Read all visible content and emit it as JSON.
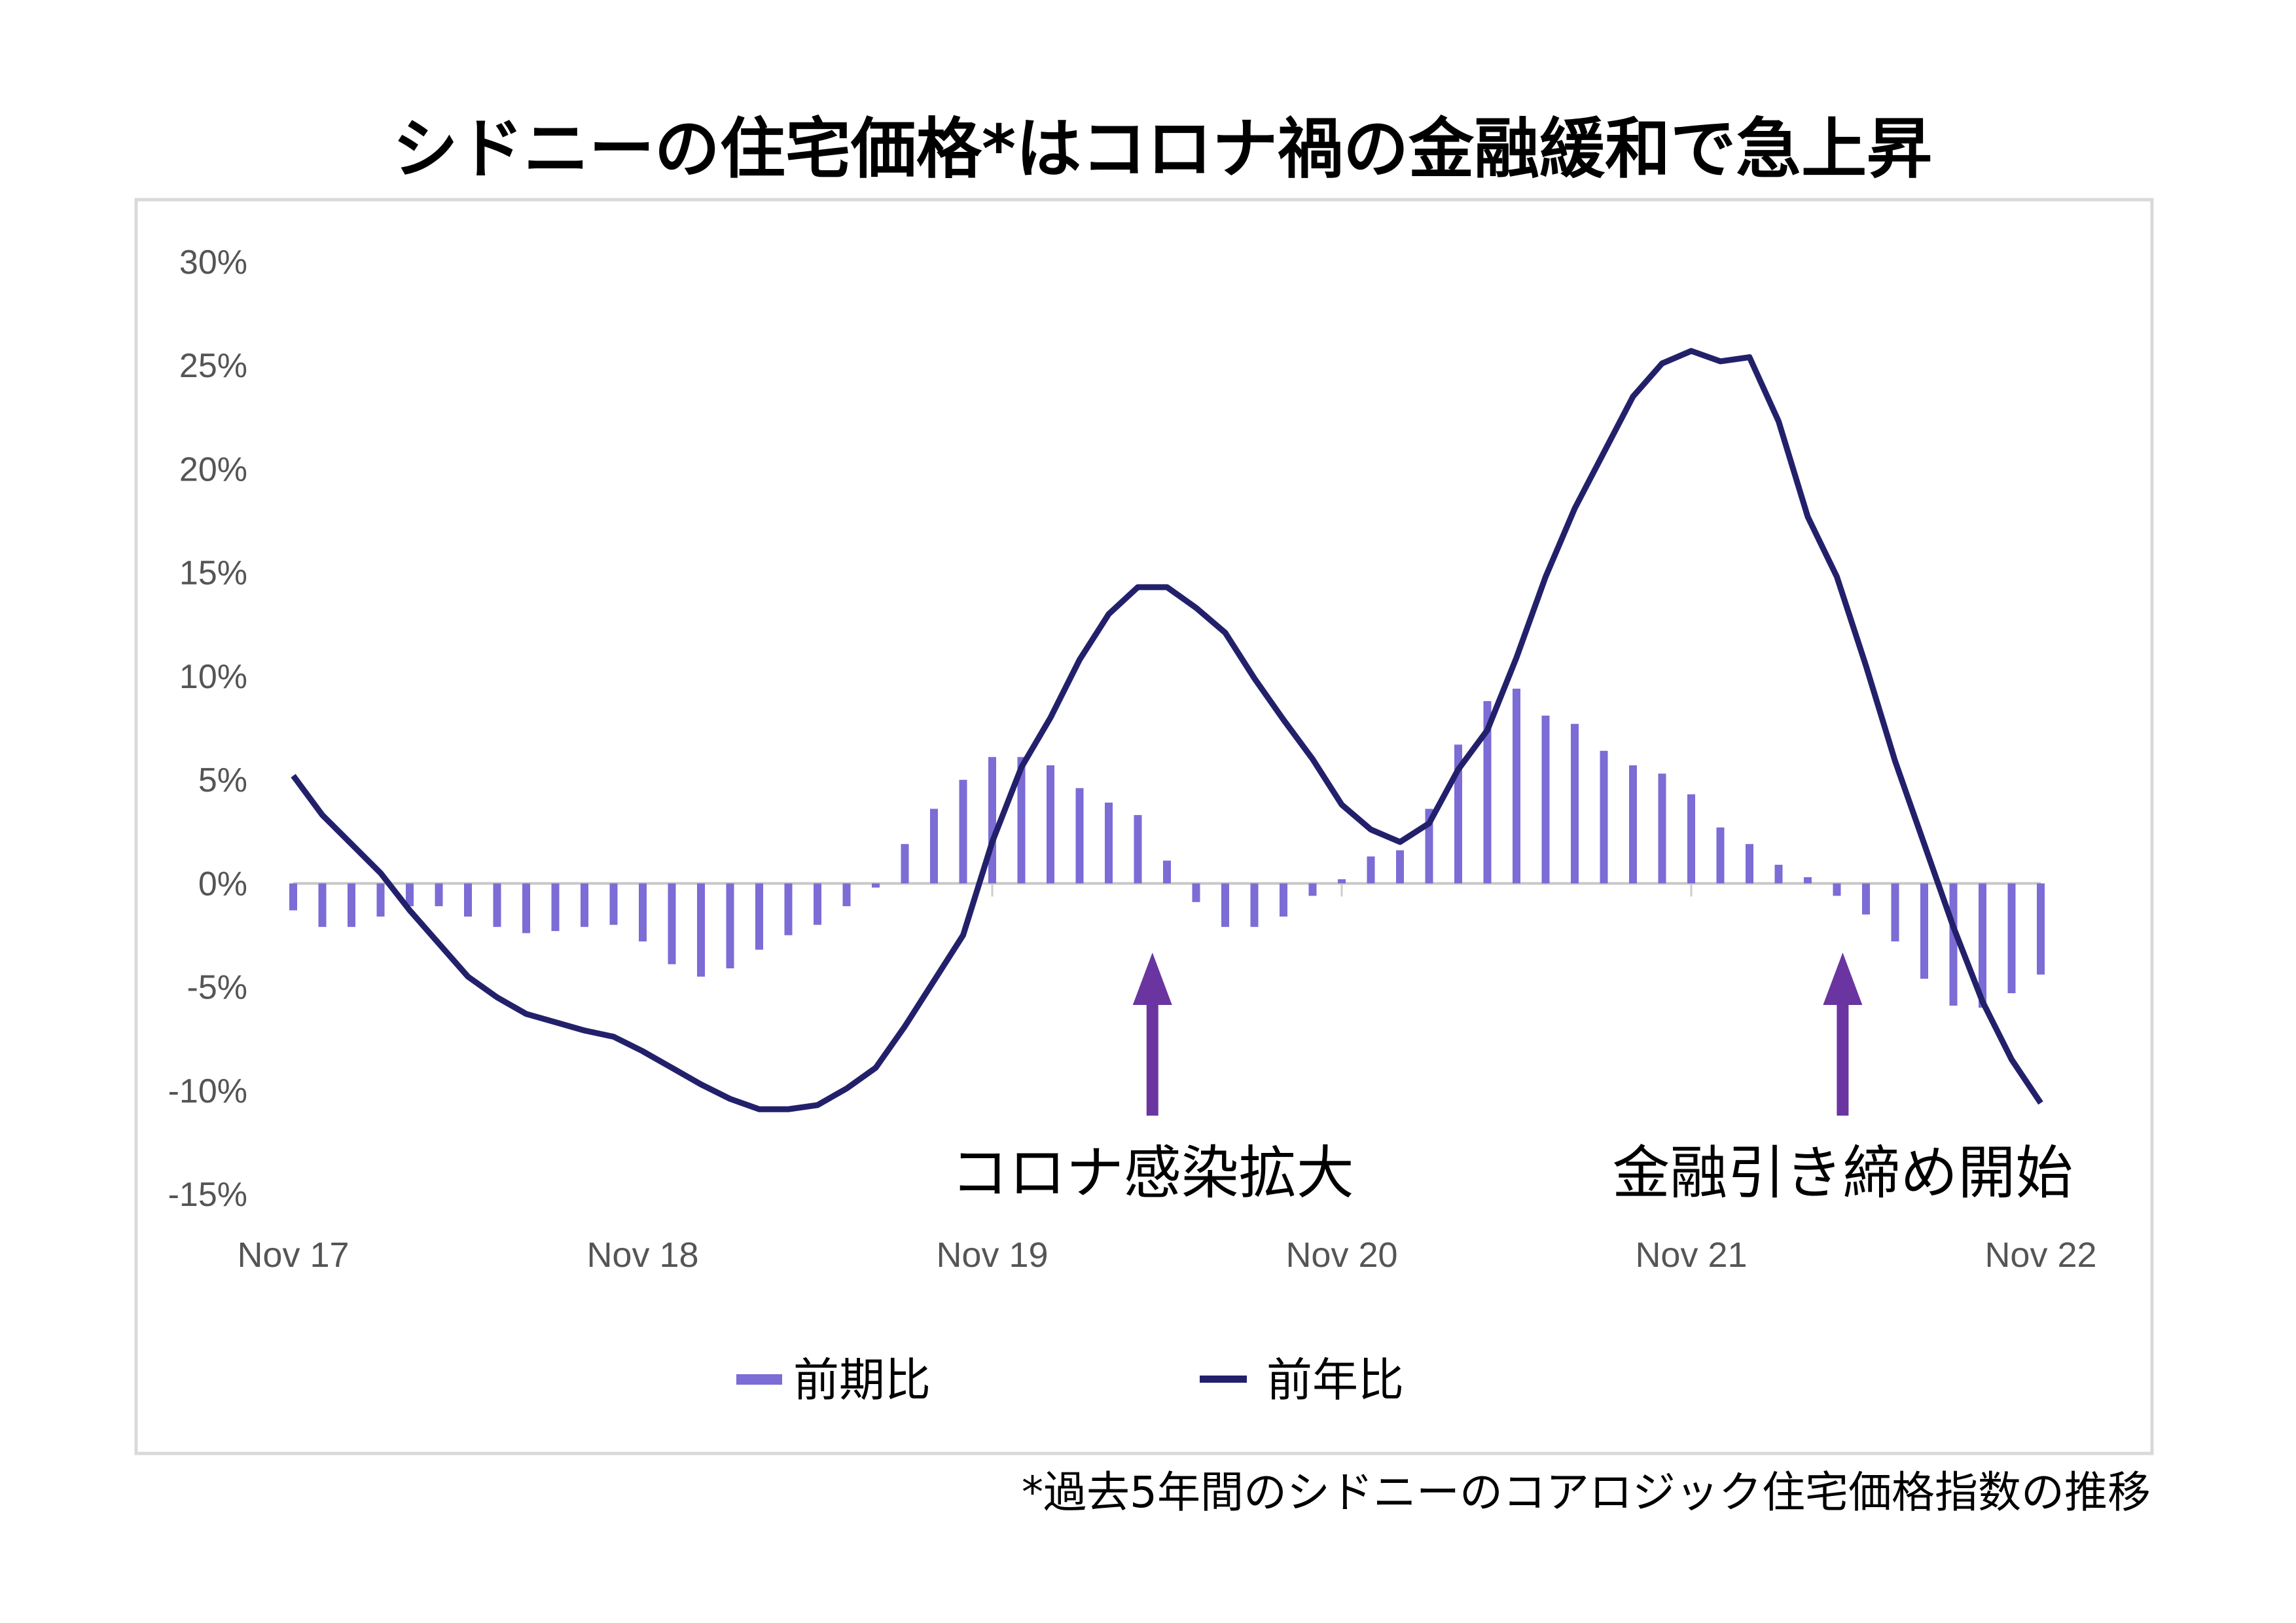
{
  "chart_data": {
    "type": "bar+line",
    "title": "シドニーの住宅価格*はコロナ禍の金融緩和で急上昇",
    "footnote": "*過去5年間のシドニーのコアロジック住宅価格指数の推移",
    "x_ticks": [
      "Nov 17",
      "Nov 18",
      "Nov 19",
      "Nov 20",
      "Nov 21",
      "Nov 22"
    ],
    "y_ticks": [
      "30%",
      "25%",
      "20%",
      "15%",
      "10%",
      "5%",
      "0%",
      "-5%",
      "-10%",
      "-15%"
    ],
    "ylim": [
      -15,
      30
    ],
    "x_range": [
      "Nov 17",
      "Nov 22"
    ],
    "frequency": "monthly",
    "legend_placement": "bottom",
    "series": [
      {
        "name": "前期比",
        "type": "bar",
        "color": "#7B6CD6",
        "values": [
          -1.3,
          -2.1,
          -2.1,
          -1.6,
          -1.1,
          -1.1,
          -1.6,
          -2.1,
          -2.4,
          -2.3,
          -2.1,
          -2.0,
          -2.8,
          -3.9,
          -4.5,
          -4.1,
          -3.2,
          -2.5,
          -2.0,
          -1.1,
          -0.2,
          1.9,
          3.6,
          5.0,
          6.1,
          6.1,
          5.7,
          4.6,
          3.9,
          3.3,
          1.1,
          -0.9,
          -2.1,
          -2.1,
          -1.6,
          -0.6,
          0.2,
          1.3,
          1.6,
          3.6,
          6.7,
          8.8,
          9.4,
          8.1,
          7.7,
          6.4,
          5.7,
          5.3,
          4.3,
          2.7,
          1.9,
          0.9,
          0.3,
          -0.6,
          -1.5,
          -2.8,
          -4.6,
          -5.9,
          -6.0,
          -5.3,
          -4.4
        ]
      },
      {
        "name": "前年比",
        "type": "line",
        "color": "#23206B",
        "values": [
          5.2,
          3.3,
          1.9,
          0.5,
          -1.3,
          -2.9,
          -4.5,
          -5.5,
          -6.3,
          -6.7,
          -7.1,
          -7.4,
          -8.1,
          -8.9,
          -9.7,
          -10.4,
          -10.9,
          -10.9,
          -10.7,
          -9.9,
          -8.9,
          -6.9,
          -4.7,
          -2.5,
          2.0,
          5.6,
          8.0,
          10.8,
          13.0,
          14.3,
          14.3,
          13.3,
          12.1,
          9.9,
          7.9,
          6.0,
          3.8,
          2.6,
          2.0,
          2.9,
          5.5,
          7.4,
          10.9,
          14.8,
          18.1,
          20.8,
          23.5,
          25.1,
          25.7,
          25.2,
          25.4,
          22.3,
          17.7,
          14.8,
          10.5,
          5.9,
          1.9,
          -2.1,
          -5.7,
          -8.5,
          -10.6
        ]
      }
    ],
    "annotations": [
      {
        "text": "コロナ感染拡大",
        "month_index": 29.5,
        "arrow": "up",
        "color": "#6A35A0"
      },
      {
        "text": "金融引き締め開始",
        "month_index": 53.2,
        "arrow": "up",
        "color": "#6A35A0"
      }
    ]
  }
}
